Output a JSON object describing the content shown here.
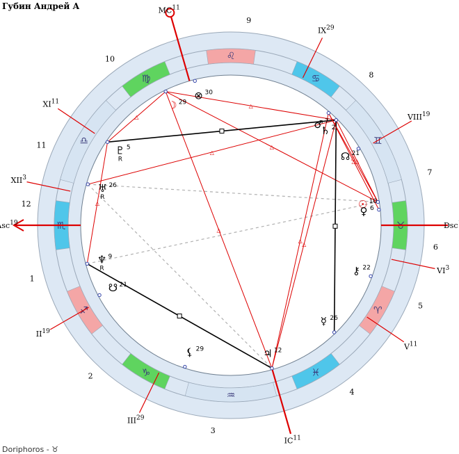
{
  "header": {
    "title": "Губин Андрей А"
  },
  "footer": {
    "text": "Doriphoros - ♉"
  },
  "colors": {
    "ring": "#dde8f4",
    "ring_stroke": "#9aa8b8",
    "fire": "#f4a6a6",
    "earth": "#5fd45f",
    "air": "#d6e4f2",
    "water": "#4fc6ea",
    "red": "#dd0000",
    "sign_glyph": "#3a3a7a"
  },
  "signs": [
    {
      "name": "Aries",
      "glyph": "♈",
      "element": "fire"
    },
    {
      "name": "Taurus",
      "glyph": "♉",
      "element": "earth"
    },
    {
      "name": "Gemini",
      "glyph": "♊",
      "element": "air"
    },
    {
      "name": "Cancer",
      "glyph": "♋",
      "element": "water"
    },
    {
      "name": "Leo",
      "glyph": "♌",
      "element": "fire"
    },
    {
      "name": "Virgo",
      "glyph": "♍",
      "element": "earth"
    },
    {
      "name": "Libra",
      "glyph": "♎",
      "element": "air"
    },
    {
      "name": "Scorpio",
      "glyph": "♏",
      "element": "water"
    },
    {
      "name": "Sagittarius",
      "glyph": "♐",
      "element": "fire"
    },
    {
      "name": "Capricorn",
      "glyph": "♑",
      "element": "earth"
    },
    {
      "name": "Aquarius",
      "glyph": "♒",
      "element": "air"
    },
    {
      "name": "Pisces",
      "glyph": "♓",
      "element": "water"
    }
  ],
  "cusps": [
    {
      "label": "Asc",
      "deg": "19",
      "angle": 0,
      "major": true,
      "arrow": true
    },
    {
      "label": "II",
      "deg": "19",
      "angle": 30
    },
    {
      "label": "III",
      "deg": "29",
      "angle": 64
    },
    {
      "label": "IC",
      "deg": "11",
      "angle": 106,
      "major": true
    },
    {
      "label": "V",
      "deg": "11",
      "angle": 146
    },
    {
      "label": "VI",
      "deg": "3",
      "angle": 168
    },
    {
      "label": "Dsc",
      "deg": "19",
      "angle": 180,
      "major": true
    },
    {
      "label": "VIII",
      "deg": "19",
      "angle": 210
    },
    {
      "label": "IX",
      "deg": "29",
      "angle": 244
    },
    {
      "label": "MC",
      "deg": "11",
      "angle": 286,
      "major": true,
      "circle": true
    },
    {
      "label": "XI",
      "deg": "11",
      "angle": 326
    },
    {
      "label": "XII",
      "deg": "3",
      "angle": 348
    }
  ],
  "house_numbers": [
    "1",
    "2",
    "3",
    "4",
    "5",
    "6",
    "7",
    "8",
    "9",
    "10",
    "11",
    "12"
  ],
  "planets": [
    {
      "name": "moon",
      "glyph": "☽",
      "deg": "29",
      "color": "#dd0000"
    },
    {
      "name": "part-of-fortune",
      "glyph": "⊗",
      "deg": "30",
      "color": "#000"
    },
    {
      "name": "mars",
      "glyph": "♂",
      "deg": "7",
      "color": "#000"
    },
    {
      "name": "saturn",
      "glyph": "♄",
      "deg": "2",
      "color": "#000"
    },
    {
      "name": "north-node",
      "glyph": "☊",
      "deg": "21",
      "color": "#000"
    },
    {
      "name": "sun",
      "glyph": "☉",
      "deg": "10",
      "color": "#dd0000"
    },
    {
      "name": "venus",
      "glyph": "♀",
      "deg": "6",
      "color": "#000"
    },
    {
      "name": "chiron",
      "glyph": "⚷",
      "deg": "22",
      "color": "#000"
    },
    {
      "name": "mercury",
      "glyph": "☿",
      "deg": "26",
      "color": "#000"
    },
    {
      "name": "jupiter",
      "glyph": "♃",
      "deg": "12",
      "color": "#000"
    },
    {
      "name": "lilith",
      "glyph": "⚸",
      "deg": "29",
      "color": "#000"
    },
    {
      "name": "south-node",
      "glyph": "☋",
      "deg": "21",
      "color": "#000"
    },
    {
      "name": "neptune",
      "glyph": "♆",
      "deg": "9",
      "retro": "R",
      "color": "#000"
    },
    {
      "name": "uranus",
      "glyph": "♅",
      "deg": "26",
      "retro": "R",
      "color": "#000"
    },
    {
      "name": "pluto",
      "glyph": "♇",
      "deg": "5",
      "retro": "R",
      "color": "#000"
    }
  ]
}
